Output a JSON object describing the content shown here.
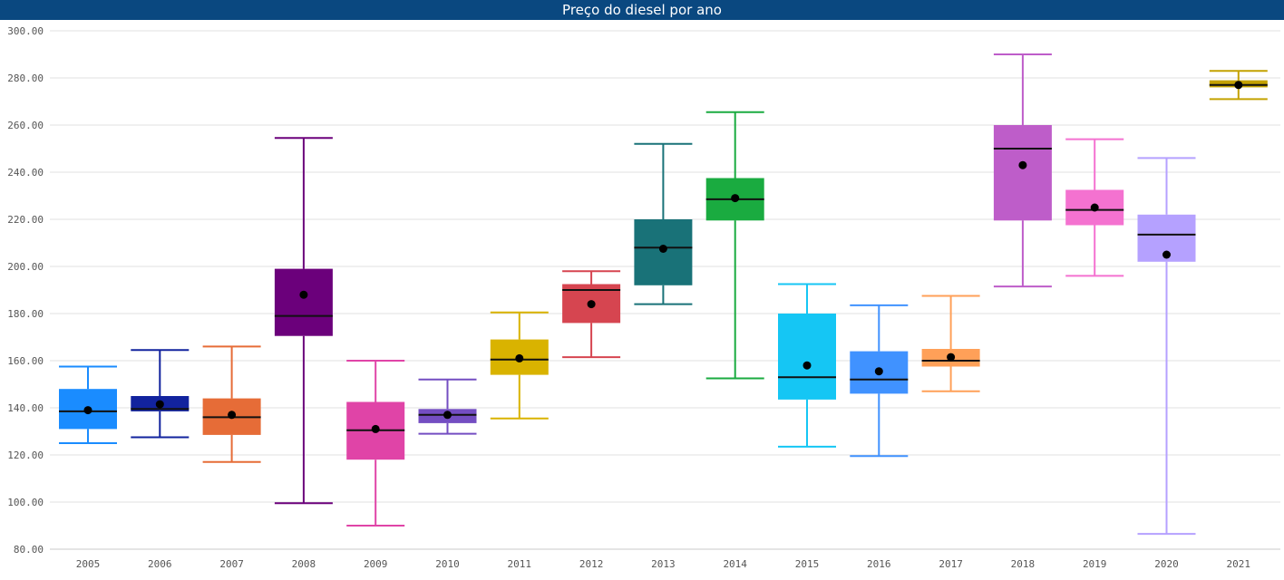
{
  "chart_data": {
    "type": "box",
    "title": "Preço do diesel por ano",
    "xlabel": "",
    "ylabel": "",
    "ylim": [
      80,
      300
    ],
    "y_ticks": [
      "80.00",
      "100.00",
      "120.00",
      "140.00",
      "160.00",
      "180.00",
      "200.00",
      "220.00",
      "240.00",
      "260.00",
      "280.00",
      "300.00"
    ],
    "grid": true,
    "legend": "none",
    "categories": [
      "2005",
      "2006",
      "2007",
      "2008",
      "2009",
      "2010",
      "2011",
      "2012",
      "2013",
      "2014",
      "2015",
      "2016",
      "2017",
      "2018",
      "2019",
      "2020",
      "2021"
    ],
    "boxes": [
      {
        "category": "2005",
        "whisker_low": 125,
        "q1": 131,
        "median": 138.5,
        "q3": 148,
        "whisker_high": 157.5,
        "mean": 139,
        "color": "#1a8cff"
      },
      {
        "category": "2006",
        "whisker_low": 127.5,
        "q1": 138.5,
        "median": 139.5,
        "q3": 145,
        "whisker_high": 164.5,
        "mean": 141.5,
        "color": "#12239e"
      },
      {
        "category": "2007",
        "whisker_low": 117,
        "q1": 128.5,
        "median": 136,
        "q3": 144,
        "whisker_high": 166,
        "mean": 137,
        "color": "#e66c37"
      },
      {
        "category": "2008",
        "whisker_low": 99.5,
        "q1": 170.5,
        "median": 179,
        "q3": 199,
        "whisker_high": 254.5,
        "mean": 188,
        "color": "#6b007b"
      },
      {
        "category": "2009",
        "whisker_low": 90,
        "q1": 118,
        "median": 130.5,
        "q3": 142.5,
        "whisker_high": 160,
        "mean": 131,
        "color": "#e044a7"
      },
      {
        "category": "2010",
        "whisker_low": 129,
        "q1": 133.5,
        "median": 137,
        "q3": 139.5,
        "whisker_high": 152,
        "mean": 137,
        "color": "#744ec2"
      },
      {
        "category": "2011",
        "whisker_low": 135.5,
        "q1": 154,
        "median": 160.5,
        "q3": 169,
        "whisker_high": 180.5,
        "mean": 161,
        "color": "#d9b300"
      },
      {
        "category": "2012",
        "whisker_low": 161.5,
        "q1": 176,
        "median": 190,
        "q3": 192.5,
        "whisker_high": 198,
        "mean": 184,
        "color": "#d64550"
      },
      {
        "category": "2013",
        "whisker_low": 184,
        "q1": 192,
        "median": 208,
        "q3": 220,
        "whisker_high": 252,
        "mean": 207.5,
        "color": "#197278"
      },
      {
        "category": "2014",
        "whisker_low": 152.5,
        "q1": 219.5,
        "median": 228.5,
        "q3": 237.5,
        "whisker_high": 265.5,
        "mean": 229,
        "color": "#1aab40"
      },
      {
        "category": "2015",
        "whisker_low": 123.5,
        "q1": 143.5,
        "median": 153,
        "q3": 180,
        "whisker_high": 192.5,
        "mean": 158,
        "color": "#15c6f4"
      },
      {
        "category": "2016",
        "whisker_low": 119.5,
        "q1": 146,
        "median": 152,
        "q3": 164,
        "whisker_high": 183.5,
        "mean": 155.5,
        "color": "#4092ff"
      },
      {
        "category": "2017",
        "whisker_low": 147,
        "q1": 157.5,
        "median": 160,
        "q3": 165,
        "whisker_high": 187.5,
        "mean": 161.5,
        "color": "#ffa058"
      },
      {
        "category": "2018",
        "whisker_low": 191.5,
        "q1": 219.5,
        "median": 250,
        "q3": 260,
        "whisker_high": 290,
        "mean": 243,
        "color": "#be5dc9"
      },
      {
        "category": "2019",
        "whisker_low": 196,
        "q1": 217.5,
        "median": 224,
        "q3": 232.5,
        "whisker_high": 254,
        "mean": 225,
        "color": "#f472d0"
      },
      {
        "category": "2020",
        "whisker_low": 86.5,
        "q1": 202,
        "median": 213.5,
        "q3": 222,
        "whisker_high": 246,
        "mean": 205,
        "color": "#b5a1ff"
      },
      {
        "category": "2021",
        "whisker_low": 271,
        "q1": 276,
        "median": 277,
        "q3": 279,
        "whisker_high": 283,
        "mean": 277,
        "color": "#c4a200"
      }
    ]
  }
}
